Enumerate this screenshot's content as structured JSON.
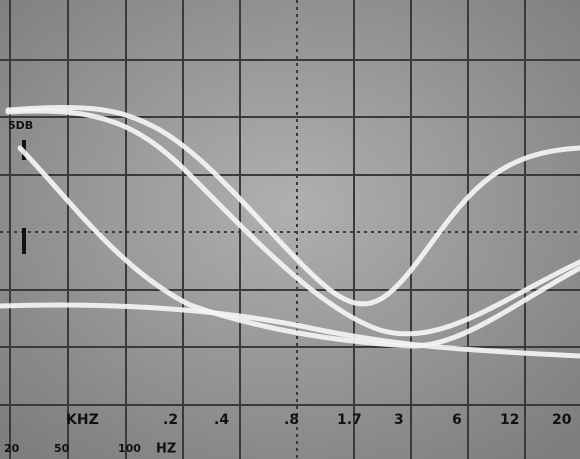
{
  "scale": "5DB",
  "khz_unit": "KHZ",
  "khz": [
    ".2",
    ".4",
    ".8",
    "1.7",
    "3",
    "6",
    "12",
    "20"
  ],
  "hz": [
    "20",
    "50",
    "100"
  ],
  "hz_unit": "HZ"
}
